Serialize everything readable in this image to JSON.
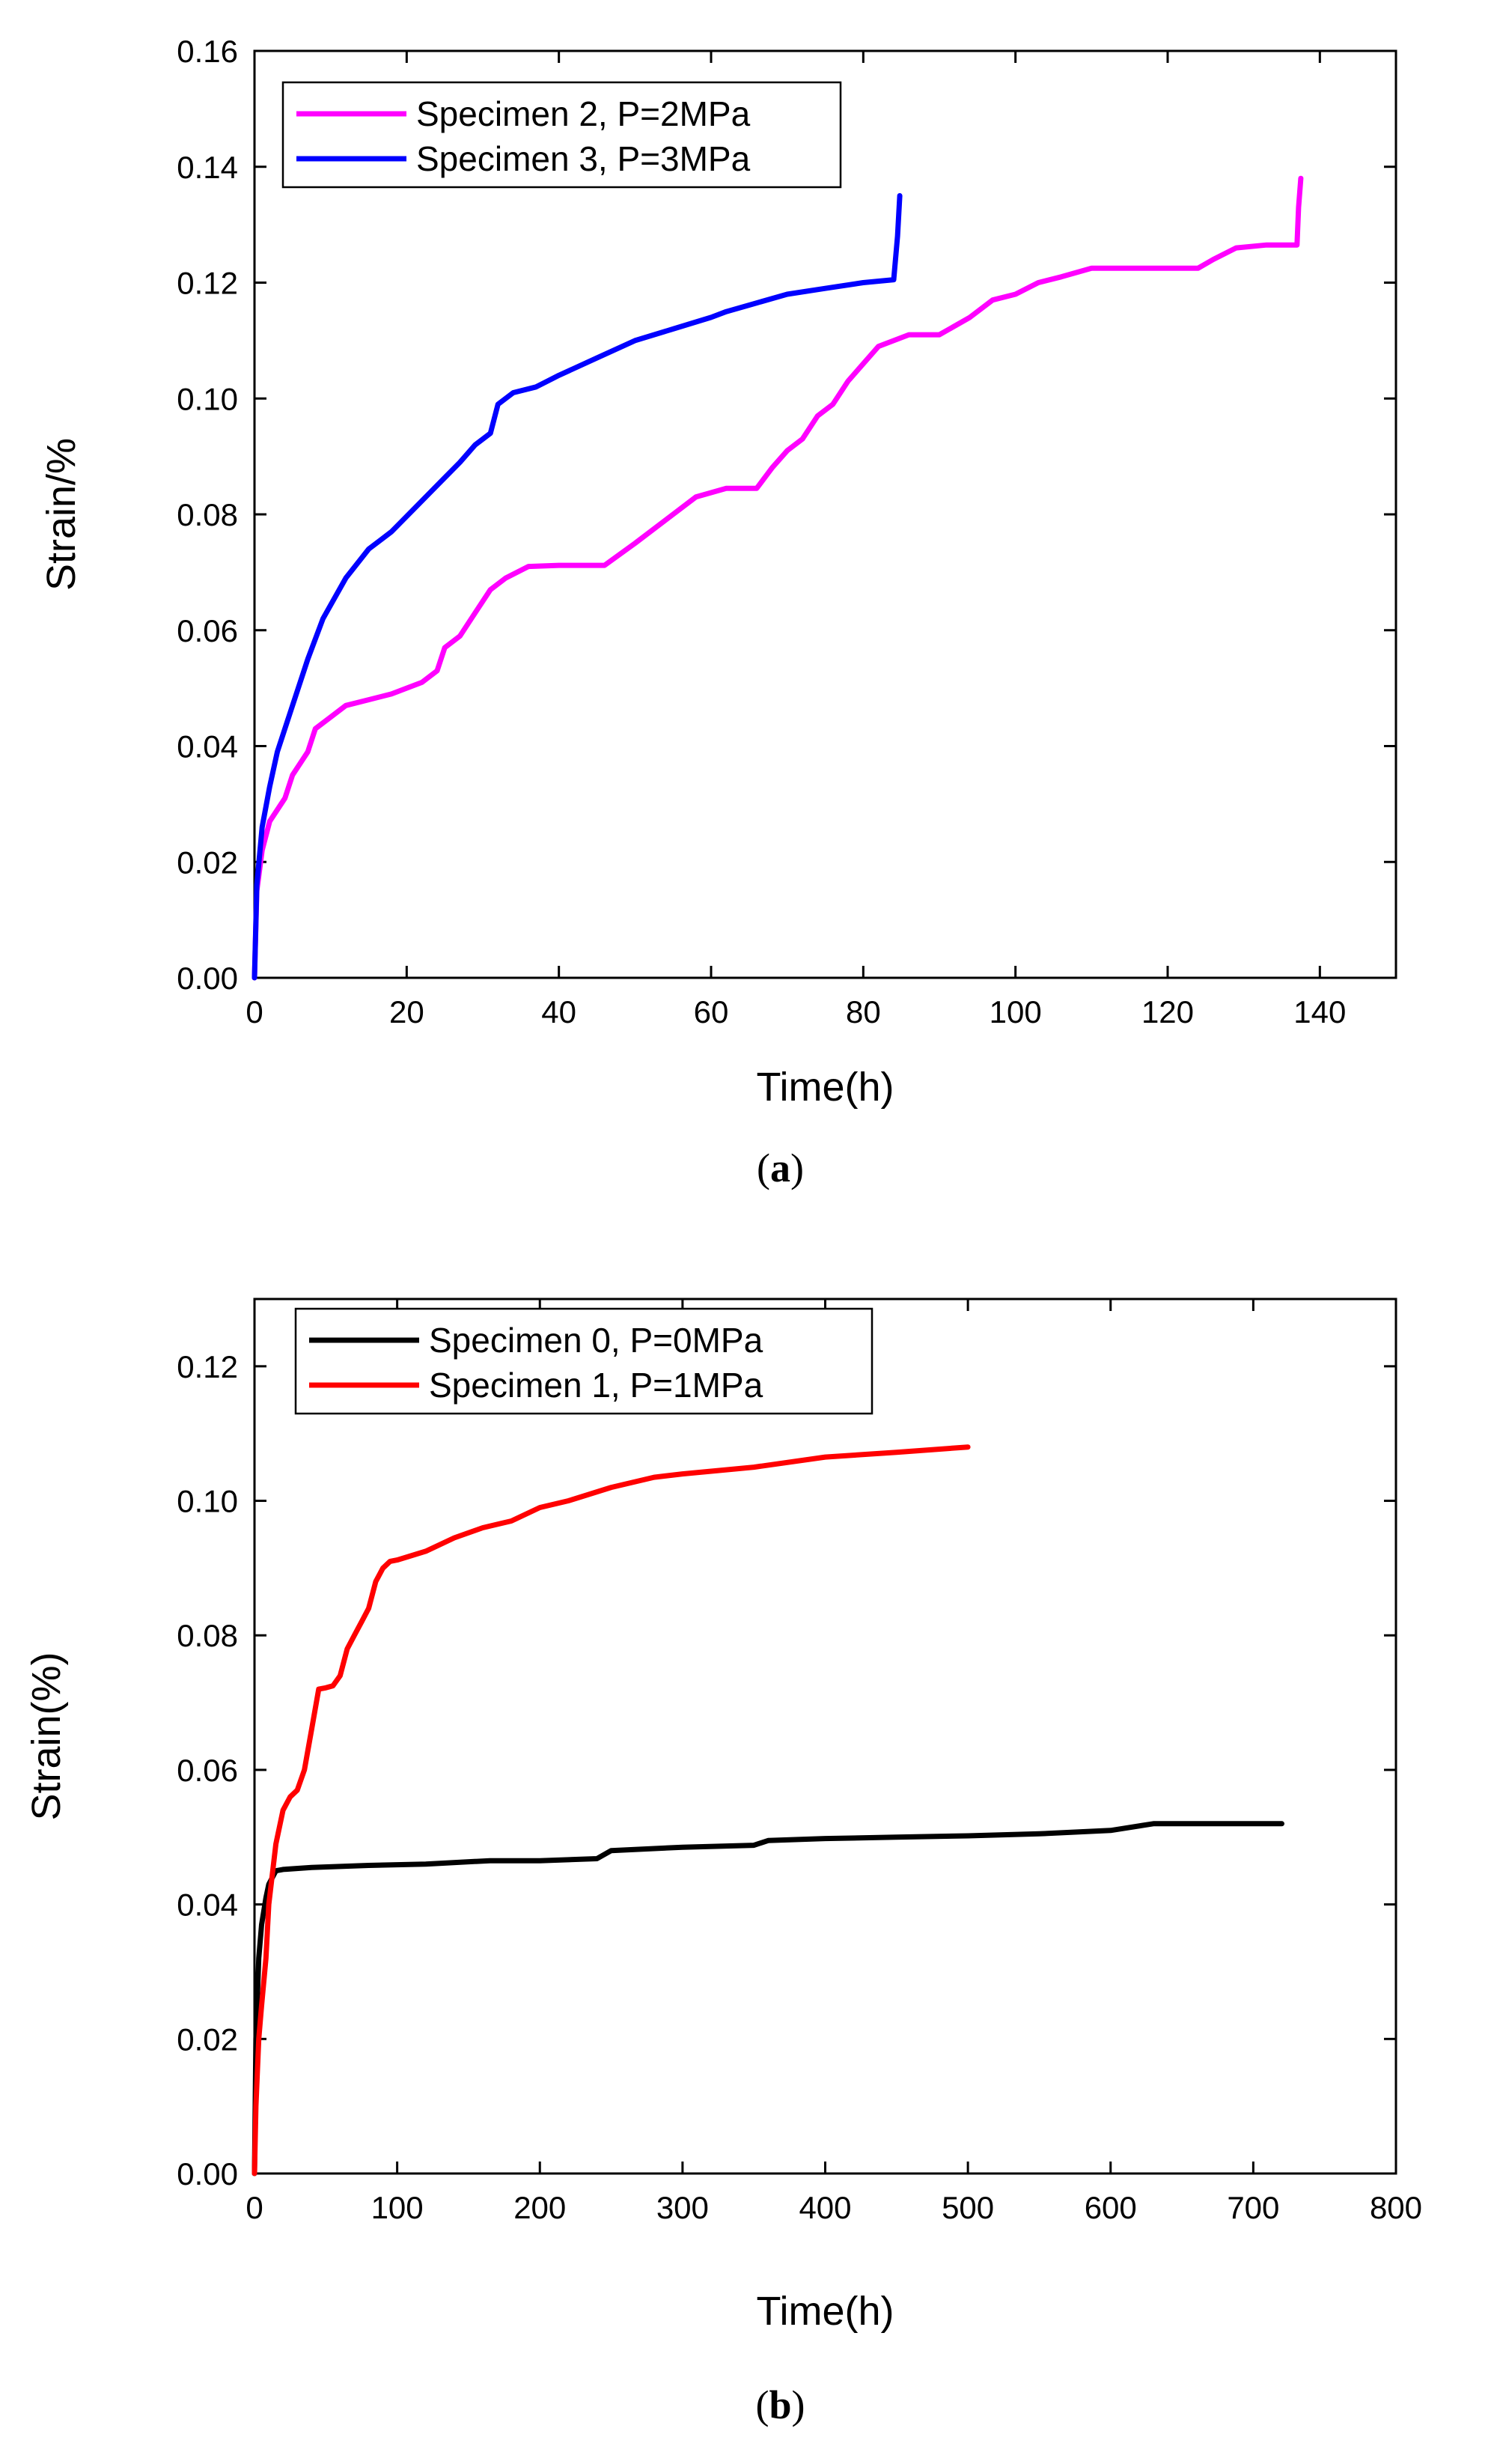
{
  "chart_data": [
    {
      "type": "line",
      "panel_label": "a",
      "title": "",
      "xlabel": "Time(h)",
      "ylabel": "Strain/%",
      "xlim": [
        0,
        150
      ],
      "ylim": [
        0,
        0.16
      ],
      "xticks": [
        "0",
        "20",
        "40",
        "60",
        "80",
        "100",
        "120",
        "140"
      ],
      "yticks": [
        "0.00",
        "0.02",
        "0.04",
        "0.06",
        "0.08",
        "0.10",
        "0.12",
        "0.14",
        "0.16"
      ],
      "grid": false,
      "legend_position": "top-left",
      "series": [
        {
          "name": "Specimen 2, P=2MPa",
          "color": "#ff00ff",
          "x": [
            0,
            0.3,
            1,
            2,
            4,
            5,
            7,
            8,
            10,
            12,
            15,
            18,
            20,
            22,
            24,
            25,
            27,
            29,
            31,
            33,
            36,
            40,
            46,
            50,
            55,
            58,
            62,
            66,
            68,
            70,
            72,
            74,
            76,
            78,
            80,
            82,
            86,
            90,
            94,
            97,
            100,
            103,
            106,
            110,
            115,
            120,
            124,
            126,
            129,
            133,
            137,
            137.2,
            137.5
          ],
          "y": [
            0,
            0.015,
            0.022,
            0.027,
            0.031,
            0.035,
            0.039,
            0.043,
            0.045,
            0.047,
            0.048,
            0.049,
            0.05,
            0.051,
            0.053,
            0.057,
            0.059,
            0.063,
            0.067,
            0.069,
            0.071,
            0.0712,
            0.0712,
            0.075,
            0.08,
            0.083,
            0.0845,
            0.0845,
            0.088,
            0.091,
            0.093,
            0.097,
            0.099,
            0.103,
            0.106,
            0.109,
            0.111,
            0.111,
            0.114,
            0.117,
            0.118,
            0.12,
            0.121,
            0.1225,
            0.1225,
            0.1225,
            0.1225,
            0.124,
            0.126,
            0.1265,
            0.1265,
            0.133,
            0.138
          ]
        },
        {
          "name": "Specimen 3, P=3MPa",
          "color": "#0000ff",
          "x": [
            0,
            0.3,
            1,
            2,
            3,
            5,
            7,
            9,
            12,
            15,
            18,
            21,
            24,
            27,
            29,
            31,
            32,
            34,
            37,
            40,
            45,
            50,
            55,
            60,
            62,
            66,
            70,
            75,
            80,
            84,
            84.5,
            84.8
          ],
          "y": [
            0,
            0.016,
            0.026,
            0.033,
            0.039,
            0.047,
            0.055,
            0.062,
            0.069,
            0.074,
            0.077,
            0.081,
            0.085,
            0.089,
            0.092,
            0.094,
            0.099,
            0.101,
            0.102,
            0.104,
            0.107,
            0.11,
            0.112,
            0.114,
            0.115,
            0.1165,
            0.118,
            0.119,
            0.12,
            0.1205,
            0.128,
            0.135
          ]
        }
      ]
    },
    {
      "type": "line",
      "panel_label": "b",
      "title": "",
      "xlabel": "Time(h)",
      "ylabel": "Strain(%)",
      "xlim": [
        0,
        800
      ],
      "ylim": [
        0,
        0.13
      ],
      "xticks": [
        "0",
        "100",
        "200",
        "300",
        "400",
        "500",
        "600",
        "700",
        "800"
      ],
      "yticks": [
        "0.00",
        "0.02",
        "0.04",
        "0.06",
        "0.08",
        "0.10",
        "0.12"
      ],
      "grid": false,
      "legend_position": "top-left",
      "series": [
        {
          "name": "Specimen 0, P=0MPa",
          "color": "#000000",
          "x": [
            0,
            1,
            3,
            5,
            8,
            10,
            15,
            20,
            40,
            80,
            120,
            165,
            200,
            240,
            250,
            300,
            350,
            360,
            400,
            450,
            500,
            550,
            600,
            630,
            700,
            720
          ],
          "y": [
            0,
            0.02,
            0.032,
            0.037,
            0.041,
            0.043,
            0.045,
            0.0452,
            0.0455,
            0.0458,
            0.046,
            0.0465,
            0.0465,
            0.0468,
            0.048,
            0.0485,
            0.0488,
            0.0495,
            0.0498,
            0.05,
            0.0502,
            0.0505,
            0.051,
            0.052,
            0.052,
            0.052
          ]
        },
        {
          "name": "Specimen 1, P=1MPa",
          "color": "#ff0000",
          "x": [
            0,
            1,
            3,
            5,
            8,
            10,
            15,
            20,
            25,
            30,
            35,
            40,
            45,
            50,
            55,
            60,
            65,
            70,
            75,
            80,
            85,
            90,
            95,
            100,
            120,
            140,
            160,
            180,
            200,
            220,
            250,
            280,
            300,
            350,
            400,
            450,
            500
          ],
          "y": [
            0,
            0.01,
            0.02,
            0.025,
            0.032,
            0.04,
            0.049,
            0.054,
            0.056,
            0.057,
            0.06,
            0.066,
            0.072,
            0.0722,
            0.0725,
            0.074,
            0.078,
            0.08,
            0.082,
            0.084,
            0.088,
            0.09,
            0.091,
            0.0912,
            0.0925,
            0.0945,
            0.096,
            0.097,
            0.099,
            0.1,
            0.102,
            0.1035,
            0.104,
            0.105,
            0.1065,
            0.1072,
            0.108
          ]
        }
      ]
    }
  ]
}
